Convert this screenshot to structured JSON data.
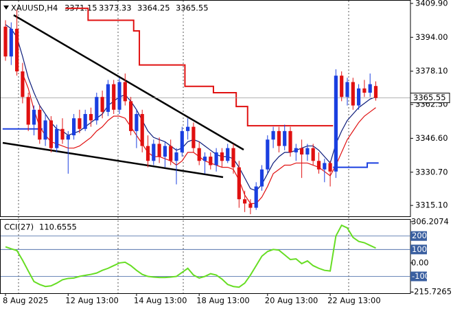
{
  "chart_data": [
    {
      "type": "candlestick",
      "title": "XAUUSD,H4",
      "categories": [
        "8 Aug 2025",
        null,
        null,
        null,
        null,
        null,
        null,
        null,
        null,
        null,
        null,
        "12 Aug 13:00",
        null,
        null,
        null,
        null,
        null,
        null,
        null,
        null,
        null,
        null,
        null,
        "14 Aug 13:00",
        null,
        null,
        null,
        null,
        null,
        null,
        null,
        null,
        null,
        null,
        "18 Aug 13:00",
        null,
        null,
        null,
        null,
        null,
        null,
        null,
        null,
        null,
        null,
        null,
        "20 Aug 13:00",
        null,
        null,
        null,
        null,
        null,
        null,
        null,
        null,
        null,
        null,
        "22 Aug 13:00",
        null,
        null,
        null,
        null,
        null,
        null,
        null,
        null
      ],
      "ohlc": [
        [
          3399,
          3402,
          3383,
          3385
        ],
        [
          3385,
          3401,
          3381,
          3398
        ],
        [
          3398,
          3407,
          3376,
          3378
        ],
        [
          3378,
          3382,
          3363,
          3366
        ],
        [
          3366,
          3368,
          3350,
          3353
        ],
        [
          3353,
          3362,
          3348,
          3360
        ],
        [
          3360,
          3362,
          3344,
          3346
        ],
        [
          3346,
          3358,
          3343,
          3355
        ],
        [
          3355,
          3357,
          3340,
          3342
        ],
        [
          3342,
          3353,
          3340,
          3351
        ],
        [
          3351,
          3356,
          3344,
          3346
        ],
        [
          3346,
          3350,
          3330,
          3348
        ],
        [
          3348,
          3358,
          3346,
          3356
        ],
        [
          3356,
          3360,
          3349,
          3351
        ],
        [
          3351,
          3360,
          3350,
          3358
        ],
        [
          3358,
          3361,
          3352,
          3355
        ],
        [
          3355,
          3368,
          3353,
          3366
        ],
        [
          3366,
          3369,
          3356,
          3359
        ],
        [
          3359,
          3374,
          3357,
          3372
        ],
        [
          3372,
          3374,
          3358,
          3360
        ],
        [
          3360,
          3375,
          3358,
          3373
        ],
        [
          3373,
          3377,
          3362,
          3364
        ],
        [
          3364,
          3366,
          3348,
          3350
        ],
        [
          3350,
          3360,
          3342,
          3358
        ],
        [
          3358,
          3360,
          3340,
          3343
        ],
        [
          3343,
          3348,
          3333,
          3336
        ],
        [
          3336,
          3346,
          3334,
          3344
        ],
        [
          3344,
          3347,
          3335,
          3338
        ],
        [
          3338,
          3345,
          3333,
          3343
        ],
        [
          3343,
          3346,
          3334,
          3336
        ],
        [
          3336,
          3342,
          3325,
          3340
        ],
        [
          3340,
          3352,
          3338,
          3350
        ],
        [
          3350,
          3356,
          3346,
          3352
        ],
        [
          3352,
          3354,
          3340,
          3342
        ],
        [
          3342,
          3345,
          3334,
          3336
        ],
        [
          3336,
          3340,
          3330,
          3338
        ],
        [
          3338,
          3340,
          3332,
          3334
        ],
        [
          3334,
          3342,
          3331,
          3340
        ],
        [
          3340,
          3342,
          3333,
          3336
        ],
        [
          3336,
          3344,
          3335,
          3342
        ],
        [
          3342,
          3344,
          3330,
          3333
        ],
        [
          3333,
          3336,
          3314,
          3318
        ],
        [
          3318,
          3322,
          3312,
          3316
        ],
        [
          3316,
          3318,
          3311,
          3314
        ],
        [
          3314,
          3326,
          3313,
          3324
        ],
        [
          3324,
          3334,
          3322,
          3332
        ],
        [
          3332,
          3348,
          3330,
          3346
        ],
        [
          3346,
          3352,
          3342,
          3350
        ],
        [
          3350,
          3352,
          3340,
          3343
        ],
        [
          3343,
          3353,
          3341,
          3350
        ],
        [
          3350,
          3352,
          3338,
          3340
        ],
        [
          3340,
          3344,
          3336,
          3342
        ],
        [
          3342,
          3346,
          3328,
          3339
        ],
        [
          3339,
          3344,
          3336,
          3342
        ],
        [
          3342,
          3344,
          3334,
          3336
        ],
        [
          3336,
          3340,
          3330,
          3332
        ],
        [
          3332,
          3337,
          3326,
          3335
        ],
        [
          3335,
          3336,
          3324,
          3331
        ],
        [
          3331,
          3379,
          3328,
          3376
        ],
        [
          3376,
          3378,
          3364,
          3366
        ],
        [
          3366,
          3375,
          3362,
          3373
        ],
        [
          3373,
          3375,
          3360,
          3362
        ],
        [
          3362,
          3372,
          3360,
          3370
        ],
        [
          3370,
          3374,
          3366,
          3368
        ],
        [
          3368,
          3377,
          3366,
          3372
        ],
        [
          3371.15,
          3373.33,
          3364.25,
          3365.55
        ]
      ],
      "up_color": "#1a3fe0",
      "down_color": "#e01010",
      "series": [
        {
          "color": "#0a1a7a",
          "step": false,
          "values": [
            3400,
            3398,
            3394,
            3385,
            3375,
            3368,
            3362,
            3358,
            3354,
            3351,
            3350,
            3348,
            3349,
            3350,
            3352,
            3354,
            3356,
            3358,
            3362,
            3364,
            3366,
            3367,
            3364,
            3360,
            3355,
            3350,
            3347,
            3346,
            3345,
            3343,
            3341,
            3342,
            3345,
            3346,
            3345,
            3343,
            3341,
            3339,
            3338,
            3338,
            3337,
            3333,
            3328,
            3323,
            3322,
            3325,
            3330,
            3335,
            3338,
            3340,
            3340,
            3341,
            3342,
            3343,
            3343,
            3341,
            3338,
            3335,
            3344,
            3350,
            3355,
            3358,
            3361,
            3363,
            3365,
            3366
          ]
        },
        {
          "color": "#e01010",
          "step": false,
          "values": [
            null,
            null,
            null,
            3377,
            3370,
            3360,
            3352,
            3348,
            3345,
            3344,
            3343,
            3342,
            3342,
            3343,
            3345,
            3347,
            3350,
            3352,
            3355,
            3357,
            3357,
            3356,
            3352,
            3348,
            3344,
            3340,
            3338,
            3338,
            3337,
            3336,
            3334,
            3336,
            3340,
            3340,
            3338,
            3336,
            3335,
            3334,
            3333,
            3333,
            3332,
            3327,
            3320,
            3316,
            3316,
            3319,
            3324,
            3330,
            3332,
            3334,
            3334,
            3335,
            3335,
            3335,
            3334,
            3333,
            3331,
            3329,
            3334,
            3340,
            3346,
            3350,
            3354,
            3357,
            3359,
            3361
          ]
        },
        {
          "color": "#e01010",
          "step": true,
          "values": [
            null,
            null,
            null,
            null,
            null,
            null,
            null,
            null,
            null,
            null,
            null,
            3407.6,
            3407.6,
            3407.6,
            3407.6,
            3402,
            3402,
            3402,
            3402,
            3402,
            3402,
            3402,
            3402,
            3397,
            3381,
            3381,
            3381,
            3381,
            3381,
            3381,
            3381,
            3381,
            3371,
            3371,
            3371,
            3371,
            3371,
            3368,
            3368,
            3368,
            3368,
            3361.5,
            3361.5,
            3352.5,
            3352.5,
            3352.5,
            3352.5,
            3352.5,
            3352.5,
            3352.5,
            3352.5,
            3352.5,
            3352.5,
            3352.5,
            3352.5,
            3352.5,
            3352.5,
            3352.5,
            null,
            null,
            null,
            null,
            null,
            null,
            null,
            null
          ]
        },
        {
          "color": "#1a3fe0",
          "step": true,
          "values": [
            3351,
            3351,
            3351,
            3351,
            3351,
            3351,
            3351,
            null,
            null,
            null,
            null,
            null,
            null,
            null,
            null,
            null,
            null,
            null,
            null,
            null,
            null,
            null,
            null,
            null,
            null,
            null,
            null,
            null,
            null,
            null,
            null,
            null,
            null,
            null,
            null,
            null,
            null,
            null,
            null,
            null,
            null,
            null,
            null,
            null,
            null,
            null,
            null,
            null,
            null,
            null,
            null,
            null,
            null,
            null,
            null,
            null,
            null,
            null,
            3333,
            3333,
            3333,
            3333,
            3333,
            3333,
            3335,
            3335
          ]
        }
      ],
      "ylim": [
        3310,
        3411.5
      ],
      "yticks": [
        {
          "value": 3409.9,
          "label": "3409.90"
        },
        {
          "value": 3394,
          "label": "3394.00"
        },
        {
          "value": 3378.1,
          "label": "3378.10"
        },
        {
          "value": 3362.5,
          "label": "3362.50"
        },
        {
          "value": 3346.6,
          "label": "3346.60"
        },
        {
          "value": 3330.7,
          "label": "3330.70"
        },
        {
          "value": 3315.1,
          "label": "3315.10"
        }
      ]
    },
    {
      "type": "line",
      "title": "CCI(27)",
      "color": "#66dd22",
      "values": [
        120,
        105,
        92,
        20,
        -60,
        -138,
        -160,
        -175,
        -170,
        -150,
        -125,
        -115,
        -112,
        -100,
        -92,
        -85,
        -75,
        -55,
        -40,
        -20,
        0,
        5,
        -20,
        -55,
        -85,
        -100,
        -105,
        -108,
        -108,
        -105,
        -100,
        -70,
        -40,
        -90,
        -112,
        -100,
        -80,
        -90,
        -120,
        -160,
        -175,
        -180,
        -150,
        -90,
        -20,
        50,
        85,
        100,
        95,
        60,
        25,
        30,
        -5,
        15,
        -20,
        -40,
        -55,
        -60,
        200,
        280,
        260,
        190,
        160,
        150,
        130,
        110.6555
      ],
      "ylim": [
        -230,
        321
      ],
      "yticks": [
        306.2074,
        {
          "value": 0,
          "label": "0.00"
        },
        -215.7265
      ],
      "hlines": [
        200,
        100,
        -100
      ],
      "hline_color": "#3a5fa0"
    }
  ]
}
